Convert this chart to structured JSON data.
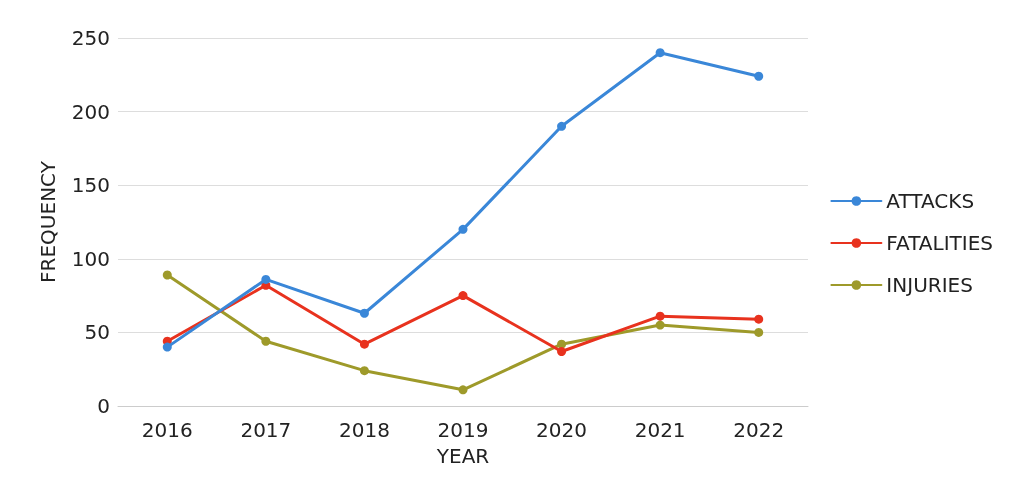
{
  "chart_data": {
    "type": "line",
    "xlabel": "YEAR",
    "ylabel": "FREQUENCY",
    "categories": [
      "2016",
      "2017",
      "2018",
      "2019",
      "2020",
      "2021",
      "2022"
    ],
    "series": [
      {
        "name": "ATTACKS",
        "color": "#3a87d8",
        "values": [
          40,
          86,
          63,
          120,
          190,
          240,
          224
        ]
      },
      {
        "name": "FATALITIES",
        "color": "#e8321e",
        "values": [
          44,
          82,
          42,
          75,
          37,
          61,
          59
        ]
      },
      {
        "name": "INJURIES",
        "color": "#9e9a2a",
        "values": [
          89,
          44,
          24,
          11,
          42,
          55,
          50
        ]
      }
    ],
    "ylim": [
      0,
      250
    ],
    "yticks": [
      0,
      50,
      100,
      150,
      200,
      250
    ],
    "grid": "y",
    "legend": "right",
    "marker": "circle",
    "line_style": "solid"
  }
}
